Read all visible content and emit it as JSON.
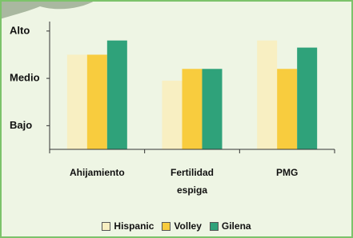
{
  "chart_data": {
    "type": "bar",
    "categories": [
      "Ahijamiento",
      "Fertilidad espiga",
      "PMG"
    ],
    "series": [
      {
        "name": "Hispanic",
        "color": "#f8efc2",
        "values": [
          2.5,
          1.95,
          2.8
        ]
      },
      {
        "name": "Volley",
        "color": "#f8cc3e",
        "values": [
          2.5,
          2.2,
          2.2
        ]
      },
      {
        "name": "Gilena",
        "color": "#2fa27a",
        "values": [
          2.8,
          2.2,
          2.65
        ]
      }
    ],
    "ylim": [
      0.5,
      3.2
    ],
    "yticks": [
      {
        "value": 1,
        "label": "Bajo"
      },
      {
        "value": 2,
        "label": "Medio"
      },
      {
        "value": 3,
        "label": "Alto"
      }
    ],
    "legend": "bottom"
  }
}
